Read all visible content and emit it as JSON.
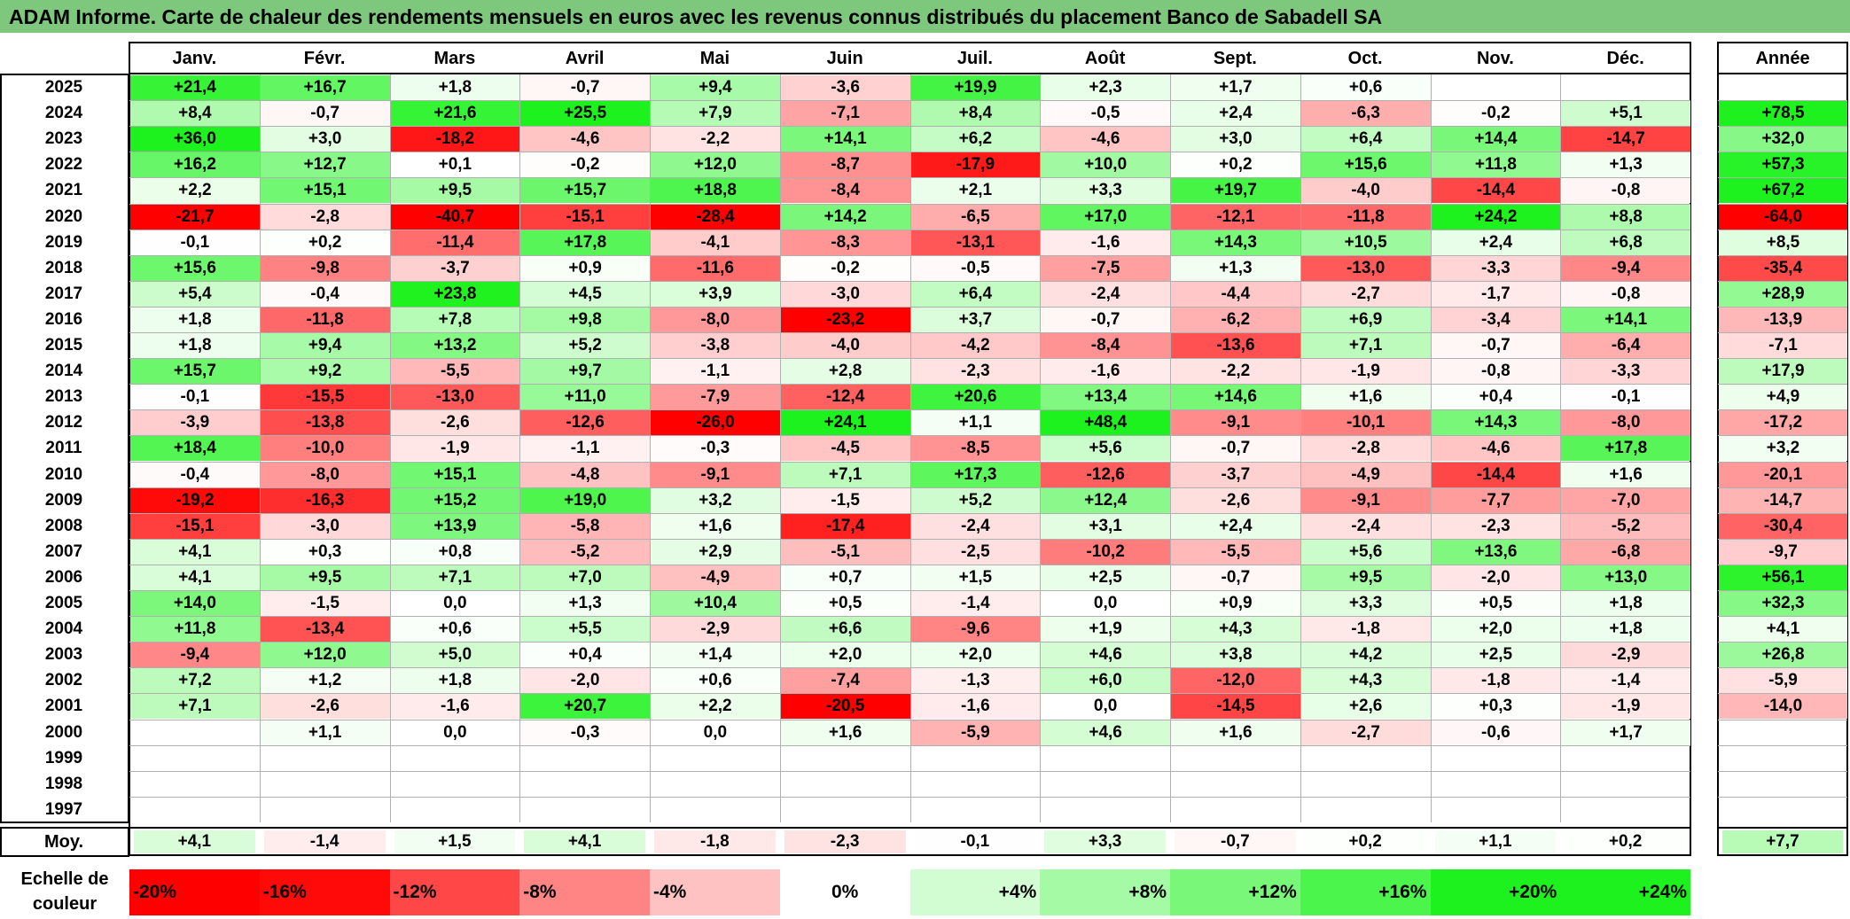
{
  "title": "ADAM Informe. Carte de chaleur des rendements mensuels en euros avec les revenus connus distribués du placement Banco de Sabadell SA",
  "chart_data": {
    "type": "heatmap",
    "title": "ADAM Informe. Carte de chaleur des rendements mensuels en euros avec les revenus connus distribués du placement Banco de Sabadell SA",
    "columns": [
      "Janv.",
      "Févr.",
      "Mars",
      "Avril",
      "Mai",
      "Juin",
      "Juil.",
      "Août",
      "Sept.",
      "Oct.",
      "Nov.",
      "Déc."
    ],
    "year_column": "Année",
    "rows": [
      {
        "year": "2025",
        "months": [
          "+21,4",
          "+16,7",
          "+1,8",
          "-0,7",
          "+9,4",
          "-3,6",
          "+19,9",
          "+2,3",
          "+1,7",
          "+0,6",
          "",
          ""
        ],
        "annual": ""
      },
      {
        "year": "2024",
        "months": [
          "+8,4",
          "-0,7",
          "+21,6",
          "+25,5",
          "+7,9",
          "-7,1",
          "+8,4",
          "-0,5",
          "+2,4",
          "-6,3",
          "-0,2",
          "+5,1"
        ],
        "annual": "+78,5"
      },
      {
        "year": "2023",
        "months": [
          "+36,0",
          "+3,0",
          "-18,2",
          "-4,6",
          "-2,2",
          "+14,1",
          "+6,2",
          "-4,6",
          "+3,0",
          "+6,4",
          "+14,4",
          "-14,7"
        ],
        "annual": "+32,0"
      },
      {
        "year": "2022",
        "months": [
          "+16,2",
          "+12,7",
          "+0,1",
          "-0,2",
          "+12,0",
          "-8,7",
          "-17,9",
          "+10,0",
          "+0,2",
          "+15,6",
          "+11,8",
          "+1,3"
        ],
        "annual": "+57,3"
      },
      {
        "year": "2021",
        "months": [
          "+2,2",
          "+15,1",
          "+9,5",
          "+15,7",
          "+18,8",
          "-8,4",
          "+2,1",
          "+3,3",
          "+19,7",
          "-4,0",
          "-14,4",
          "-0,8"
        ],
        "annual": "+67,2"
      },
      {
        "year": "2020",
        "months": [
          "-21,7",
          "-2,8",
          "-40,7",
          "-15,1",
          "-28,4",
          "+14,2",
          "-6,5",
          "+17,0",
          "-12,1",
          "-11,8",
          "+24,2",
          "+8,8"
        ],
        "annual": "-64,0"
      },
      {
        "year": "2019",
        "months": [
          "-0,1",
          "+0,2",
          "-11,4",
          "+17,8",
          "-4,1",
          "-8,3",
          "-13,1",
          "-1,6",
          "+14,3",
          "+10,5",
          "+2,4",
          "+6,8"
        ],
        "annual": "+8,5"
      },
      {
        "year": "2018",
        "months": [
          "+15,6",
          "-9,8",
          "-3,7",
          "+0,9",
          "-11,6",
          "-0,2",
          "-0,5",
          "-7,5",
          "+1,3",
          "-13,0",
          "-3,3",
          "-9,4"
        ],
        "annual": "-35,4"
      },
      {
        "year": "2017",
        "months": [
          "+5,4",
          "-0,4",
          "+23,8",
          "+4,5",
          "+3,9",
          "-3,0",
          "+6,4",
          "-2,4",
          "-4,4",
          "-2,7",
          "-1,7",
          "-0,8"
        ],
        "annual": "+28,9"
      },
      {
        "year": "2016",
        "months": [
          "+1,8",
          "-11,8",
          "+7,8",
          "+9,8",
          "-8,0",
          "-23,2",
          "+3,7",
          "-0,7",
          "-6,2",
          "+6,9",
          "-3,4",
          "+14,1"
        ],
        "annual": "-13,9"
      },
      {
        "year": "2015",
        "months": [
          "+1,8",
          "+9,4",
          "+13,2",
          "+5,2",
          "-3,8",
          "-4,0",
          "-4,2",
          "-8,4",
          "-13,6",
          "+7,1",
          "-0,7",
          "-6,4"
        ],
        "annual": "-7,1"
      },
      {
        "year": "2014",
        "months": [
          "+15,7",
          "+9,2",
          "-5,5",
          "+9,7",
          "-1,1",
          "+2,8",
          "-2,3",
          "-1,6",
          "-2,2",
          "-1,9",
          "-0,8",
          "-3,3"
        ],
        "annual": "+17,9"
      },
      {
        "year": "2013",
        "months": [
          "-0,1",
          "-15,5",
          "-13,0",
          "+11,0",
          "-7,9",
          "-12,4",
          "+20,6",
          "+13,4",
          "+14,6",
          "+1,6",
          "+0,4",
          "-0,1"
        ],
        "annual": "+4,9"
      },
      {
        "year": "2012",
        "months": [
          "-3,9",
          "-13,8",
          "-2,6",
          "-12,6",
          "-26,0",
          "+24,1",
          "+1,1",
          "+48,4",
          "-9,1",
          "-10,1",
          "+14,3",
          "-8,0"
        ],
        "annual": "-17,2"
      },
      {
        "year": "2011",
        "months": [
          "+18,4",
          "-10,0",
          "-1,9",
          "-1,1",
          "-0,3",
          "-4,5",
          "-8,5",
          "+5,6",
          "-0,7",
          "-2,8",
          "-4,6",
          "+17,8"
        ],
        "annual": "+3,2"
      },
      {
        "year": "2010",
        "months": [
          "-0,4",
          "-8,0",
          "+15,1",
          "-4,8",
          "-9,1",
          "+7,1",
          "+17,3",
          "-12,6",
          "-3,7",
          "-4,9",
          "-14,4",
          "+1,6"
        ],
        "annual": "-20,1"
      },
      {
        "year": "2009",
        "months": [
          "-19,2",
          "-16,3",
          "+15,2",
          "+19,0",
          "+3,2",
          "-1,5",
          "+5,2",
          "+12,4",
          "-2,6",
          "-9,1",
          "-7,7",
          "-7,0"
        ],
        "annual": "-14,7"
      },
      {
        "year": "2008",
        "months": [
          "-15,1",
          "-3,0",
          "+13,9",
          "-5,8",
          "+1,6",
          "-17,4",
          "-2,4",
          "+3,1",
          "+2,4",
          "-2,4",
          "-2,3",
          "-5,2"
        ],
        "annual": "-30,4"
      },
      {
        "year": "2007",
        "months": [
          "+4,1",
          "+0,3",
          "+0,8",
          "-5,2",
          "+2,9",
          "-5,1",
          "-2,5",
          "-10,2",
          "-5,5",
          "+5,6",
          "+13,6",
          "-6,8"
        ],
        "annual": "-9,7"
      },
      {
        "year": "2006",
        "months": [
          "+4,1",
          "+9,5",
          "+7,1",
          "+7,0",
          "-4,9",
          "+0,7",
          "+1,5",
          "+2,5",
          "-0,7",
          "+9,5",
          "-2,0",
          "+13,0"
        ],
        "annual": "+56,1"
      },
      {
        "year": "2005",
        "months": [
          "+14,0",
          "-1,5",
          "0,0",
          "+1,3",
          "+10,4",
          "+0,5",
          "-1,4",
          "0,0",
          "+0,9",
          "+3,3",
          "+0,5",
          "+1,8"
        ],
        "annual": "+32,3"
      },
      {
        "year": "2004",
        "months": [
          "+11,8",
          "-13,4",
          "+0,6",
          "+5,5",
          "-2,9",
          "+6,6",
          "-9,6",
          "+1,9",
          "+4,3",
          "-1,8",
          "+2,0",
          "+1,8"
        ],
        "annual": "+4,1"
      },
      {
        "year": "2003",
        "months": [
          "-9,4",
          "+12,0",
          "+5,0",
          "+0,4",
          "+1,4",
          "+2,0",
          "+2,0",
          "+4,6",
          "+3,8",
          "+4,2",
          "+2,5",
          "-2,9"
        ],
        "annual": "+26,8"
      },
      {
        "year": "2002",
        "months": [
          "+7,2",
          "+1,2",
          "+1,8",
          "-2,0",
          "+0,6",
          "-7,4",
          "-1,3",
          "+6,0",
          "-12,0",
          "+4,3",
          "-1,8",
          "-1,4"
        ],
        "annual": "-5,9"
      },
      {
        "year": "2001",
        "months": [
          "+7,1",
          "-2,6",
          "-1,6",
          "+20,7",
          "+2,2",
          "-20,5",
          "-1,6",
          "0,0",
          "-14,5",
          "+2,6",
          "+0,3",
          "-1,9"
        ],
        "annual": "-14,0"
      },
      {
        "year": "2000",
        "months": [
          "",
          "+1,1",
          "0,0",
          "-0,3",
          "0,0",
          "+1,6",
          "-5,9",
          "+4,6",
          "+1,6",
          "-2,7",
          "-0,6",
          "+1,7"
        ],
        "annual": ""
      },
      {
        "year": "1999",
        "months": [
          "",
          "",
          "",
          "",
          "",
          "",
          "",
          "",
          "",
          "",
          "",
          ""
        ],
        "annual": ""
      },
      {
        "year": "1998",
        "months": [
          "",
          "",
          "",
          "",
          "",
          "",
          "",
          "",
          "",
          "",
          "",
          ""
        ],
        "annual": ""
      },
      {
        "year": "1997",
        "months": [
          "",
          "",
          "",
          "",
          "",
          "",
          "",
          "",
          "",
          "",
          "",
          ""
        ],
        "annual": ""
      }
    ],
    "average": {
      "label": "Moy.",
      "months": [
        "+4,1",
        "-1,4",
        "+1,5",
        "+4,1",
        "-1,8",
        "-2,3",
        "-0,1",
        "+3,3",
        "-0,7",
        "+0,2",
        "+1,1",
        "+0,2"
      ],
      "annual": "+7,7"
    },
    "color_scale": {
      "label_line1": "Echelle de",
      "label_line2": "couleur",
      "stops": [
        "-20%",
        "-16%",
        "-12%",
        "-8%",
        "-4%",
        "0%",
        "+4%",
        "+8%",
        "+12%",
        "+16%",
        "+20%",
        "+24%"
      ],
      "negative_color": "#ff0000",
      "neutral_color": "#ffffff",
      "positive_color": "#1ef21e"
    }
  }
}
